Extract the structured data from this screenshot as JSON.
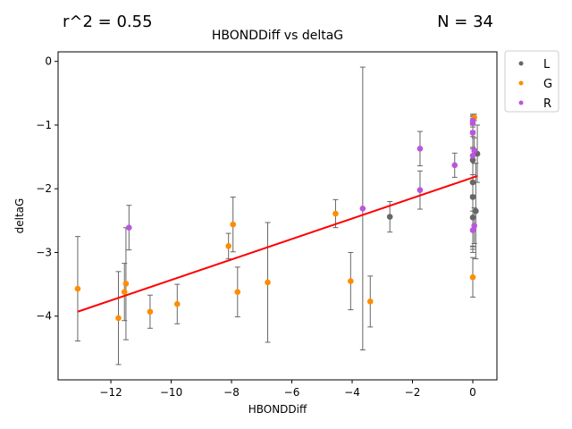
{
  "header": {
    "r2_text": "r^2 = 0.55",
    "n_text": "N = 34"
  },
  "chart_data": {
    "type": "scatter",
    "title": "HBONDDiff vs deltaG",
    "xlabel": "HBONDDiff",
    "ylabel": "deltaG",
    "xlim": [
      -13.75,
      0.8
    ],
    "ylim": [
      -5.0,
      0.15
    ],
    "xticks": [
      -12,
      -10,
      -8,
      -6,
      -4,
      -2,
      0
    ],
    "yticks": [
      0,
      -1,
      -2,
      -3,
      -4
    ],
    "xtick_labels": [
      "−12",
      "−10",
      "−8",
      "−6",
      "−4",
      "−2",
      "0"
    ],
    "ytick_labels": [
      "0",
      "−1",
      "−2",
      "−3",
      "−4"
    ],
    "grid": false,
    "legend_position": "outside-top-right",
    "fit_line": {
      "x": [
        -13.1,
        0.15
      ],
      "y": [
        -3.93,
        -1.8
      ],
      "color": "#ff0000"
    },
    "series": [
      {
        "name": "L",
        "color": "#666666",
        "points": [
          {
            "x": -2.75,
            "y": -2.44,
            "err": 0.24
          },
          {
            "x": 0.0,
            "y": -1.9,
            "err": 1.0
          },
          {
            "x": 0.0,
            "y": -2.13,
            "err": 0.78
          },
          {
            "x": 0.0,
            "y": -2.45,
            "err": 0.55
          },
          {
            "x": 0.1,
            "y": -2.35,
            "err": 0.75
          },
          {
            "x": 0.15,
            "y": -1.45,
            "err": 0.45
          },
          {
            "x": 0.0,
            "y": -1.55,
            "err": 0.55
          }
        ]
      },
      {
        "name": "G",
        "color": "#ff8c00",
        "points": [
          {
            "x": -13.1,
            "y": -3.57,
            "err": 0.82
          },
          {
            "x": -11.75,
            "y": -4.03,
            "err": 0.73
          },
          {
            "x": -11.55,
            "y": -3.62,
            "err": 0.45
          },
          {
            "x": -11.5,
            "y": -3.49,
            "err": 0.88
          },
          {
            "x": -10.7,
            "y": -3.93,
            "err": 0.26
          },
          {
            "x": -9.8,
            "y": -3.81,
            "err": 0.31
          },
          {
            "x": -8.1,
            "y": -2.9,
            "err": 0.2
          },
          {
            "x": -7.95,
            "y": -2.56,
            "err": 0.43
          },
          {
            "x": -7.8,
            "y": -3.62,
            "err": 0.39
          },
          {
            "x": -6.8,
            "y": -3.47,
            "err": 0.94
          },
          {
            "x": -4.55,
            "y": -2.39,
            "err": 0.22
          },
          {
            "x": -4.05,
            "y": -3.45,
            "err": 0.45
          },
          {
            "x": -3.4,
            "y": -3.77,
            "err": 0.4
          },
          {
            "x": 0.0,
            "y": -3.39,
            "err": 0.31
          },
          {
            "x": 0.05,
            "y": -0.88,
            "err": 0.05
          }
        ]
      },
      {
        "name": "R",
        "color": "#bb55dd",
        "points": [
          {
            "x": -11.4,
            "y": -2.61,
            "err": 0.35
          },
          {
            "x": -3.65,
            "y": -2.31,
            "err": 2.22
          },
          {
            "x": -1.75,
            "y": -1.37,
            "err": 0.27
          },
          {
            "x": -1.75,
            "y": -2.02,
            "err": 0.3
          },
          {
            "x": -0.6,
            "y": -1.63,
            "err": 0.19
          },
          {
            "x": 0.0,
            "y": -0.93,
            "err": 0.1
          },
          {
            "x": 0.0,
            "y": -0.97,
            "err": 0.12
          },
          {
            "x": 0.0,
            "y": -1.12,
            "err": 0.25
          },
          {
            "x": 0.0,
            "y": -1.48,
            "err": 0.3
          },
          {
            "x": 0.0,
            "y": -2.65,
            "err": 0.3
          },
          {
            "x": 0.05,
            "y": -2.58,
            "err": 0.28
          },
          {
            "x": 0.05,
            "y": -1.4,
            "err": 0.2
          }
        ]
      }
    ]
  }
}
